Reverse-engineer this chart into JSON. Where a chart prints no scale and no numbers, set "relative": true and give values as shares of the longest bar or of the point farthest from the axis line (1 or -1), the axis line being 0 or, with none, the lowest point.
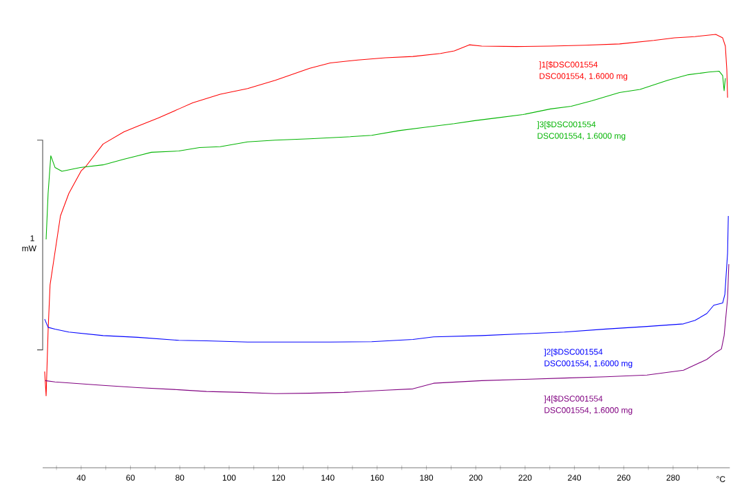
{
  "chart_data": {
    "type": "line",
    "relative": true,
    "xlabel": "°C",
    "xlim": [
      24.4,
      303
    ],
    "tick_labels": "x",
    "legend": false,
    "xticks": [
      {
        "value": 30,
        "label": null
      },
      40,
      {
        "value": 50,
        "label": null
      },
      60,
      {
        "value": 70,
        "label": null
      },
      80,
      {
        "value": 90,
        "label": null
      },
      100,
      {
        "value": 110,
        "label": null
      },
      120,
      {
        "value": 130,
        "label": null
      },
      140,
      {
        "value": 150,
        "label": null
      },
      160,
      {
        "value": 170,
        "label": null
      },
      180,
      {
        "value": 190,
        "label": null
      },
      200,
      {
        "value": 210,
        "label": null
      },
      220,
      {
        "value": 230,
        "label": null
      },
      240,
      {
        "value": 250,
        "label": null
      },
      260,
      {
        "value": 270,
        "label": null
      },
      280,
      {
        "value": 290,
        "label": null
      }
    ],
    "annotations": [
      "1 mW",
      "DSC001554, 1.6000 mg",
      "DSC001554, 1.6000 mg",
      "DSC001554, 1.6000 mg",
      "DSC001554, 1.6000 mg"
    ],
    "series": [
      {
        "name": "]1[$DSC001554",
        "color": "#ff0000",
        "x": [
          25.2,
          25.8,
          26.6,
          27.4,
          28.8,
          31.6,
          35.0,
          40.0,
          42.0,
          48.9,
          57.3,
          62.9,
          71.3,
          79.6,
          85.2,
          96.4,
          107.5,
          118.7,
          124.3,
          132.7,
          141.0,
          152.2,
          163.4,
          174.5,
          185.7,
          191.3,
          197.4,
          202.4,
          216.4,
          230.3,
          244.3,
          258.3,
          272.2,
          280.6,
          288.9,
          297.3,
          300.1,
          301.2,
          301.8,
          302.1
        ],
        "values": [
          0.222,
          0.166,
          0.316,
          0.422,
          0.475,
          0.581,
          0.633,
          0.685,
          0.696,
          0.747,
          0.775,
          0.788,
          0.807,
          0.828,
          0.842,
          0.862,
          0.875,
          0.894,
          0.905,
          0.922,
          0.934,
          0.941,
          0.946,
          0.949,
          0.956,
          0.962,
          0.976,
          0.973,
          0.972,
          0.973,
          0.975,
          0.978,
          0.986,
          0.992,
          0.995,
          1,
          0.992,
          0.973,
          0.918,
          0.854
        ]
      },
      {
        "name": "]3[$DSC001554",
        "color": "#00b400",
        "x": [
          25.8,
          26.6,
          27.7,
          29.4,
          32.2,
          39.7,
          48.9,
          57.3,
          62.9,
          68.5,
          79.6,
          88.0,
          96.4,
          107.5,
          118.7,
          132.7,
          146.6,
          157.8,
          168.9,
          180.1,
          191.3,
          199.6,
          208.0,
          219.2,
          230.3,
          238.7,
          247.1,
          258.3,
          266.6,
          277.8,
          286.2,
          294.5,
          298.7,
          300.1,
          300.7,
          301.2
        ],
        "values": [
          0.527,
          0.633,
          0.72,
          0.693,
          0.684,
          0.693,
          0.699,
          0.712,
          0.72,
          0.728,
          0.731,
          0.739,
          0.741,
          0.752,
          0.756,
          0.759,
          0.763,
          0.767,
          0.778,
          0.786,
          0.794,
          0.801,
          0.807,
          0.815,
          0.828,
          0.834,
          0.847,
          0.866,
          0.873,
          0.894,
          0.907,
          0.913,
          0.915,
          0.905,
          0.87,
          0.899
        ]
      },
      {
        "name": "]2[$DSC001554",
        "color": "#0000ff",
        "x": [
          25.2,
          26.6,
          29.4,
          35.0,
          48.9,
          62.9,
          79.6,
          90.8,
          107.5,
          124.3,
          141.0,
          157.8,
          174.5,
          182.9,
          202.4,
          219.2,
          235.9,
          252.7,
          269.4,
          284.2,
          288.9,
          293.7,
          296.5,
          300.1,
          301.0,
          302.1,
          302.4
        ],
        "values": [
          0.343,
          0.324,
          0.32,
          0.313,
          0.305,
          0.301,
          0.294,
          0.293,
          0.29,
          0.29,
          0.29,
          0.291,
          0.296,
          0.302,
          0.305,
          0.309,
          0.313,
          0.32,
          0.326,
          0.332,
          0.34,
          0.356,
          0.375,
          0.38,
          0.4,
          0.495,
          0.581
        ]
      },
      {
        "name": "]4[$DSC001554",
        "color": "#800080",
        "x": [
          25.5,
          29.4,
          48.9,
          62.9,
          79.6,
          90.8,
          104.7,
          118.7,
          132.7,
          146.6,
          163.4,
          174.5,
          182.9,
          202.4,
          219.2,
          235.9,
          252.7,
          269.4,
          284.2,
          293.7,
          297.3,
          299.6,
          300.7,
          302.1,
          302.6
        ],
        "values": [
          0.201,
          0.198,
          0.19,
          0.185,
          0.18,
          0.176,
          0.174,
          0.171,
          0.172,
          0.174,
          0.179,
          0.182,
          0.195,
          0.201,
          0.204,
          0.207,
          0.21,
          0.214,
          0.225,
          0.25,
          0.266,
          0.274,
          0.305,
          0.391,
          0.47
        ]
      }
    ]
  }
}
